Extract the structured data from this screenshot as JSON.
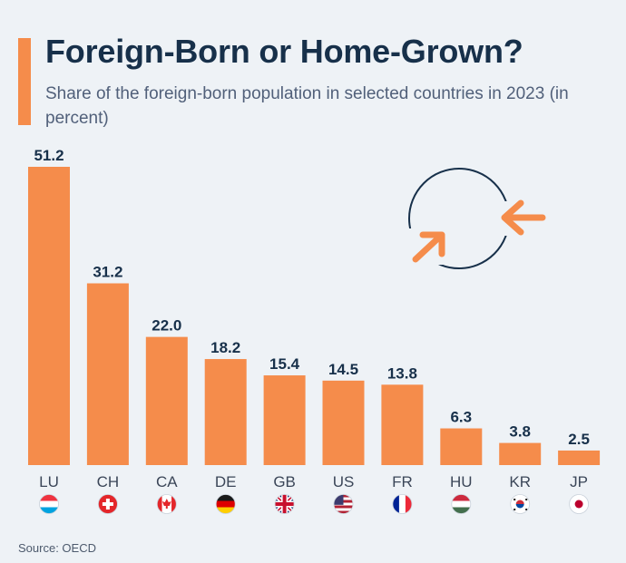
{
  "header": {
    "title": "Foreign-Born or Home-Grown?",
    "subtitle": "Share of the foreign-born population in selected countries in 2023 (in percent)"
  },
  "footer": {
    "source": "Source: OECD"
  },
  "colors": {
    "bar": "#f58c4b",
    "accent": "#f58c4b",
    "title": "#17304a",
    "label": "#17304a",
    "background": "#eef2f6"
  },
  "chart_data": {
    "type": "bar",
    "title": "Foreign-Born or Home-Grown?",
    "subtitle": "Share of the foreign-born population in selected countries in 2023 (in percent)",
    "categories": [
      "LU",
      "CH",
      "CA",
      "DE",
      "GB",
      "US",
      "FR",
      "HU",
      "KR",
      "JP"
    ],
    "values": [
      51.2,
      31.2,
      22.0,
      18.2,
      15.4,
      14.5,
      13.8,
      6.3,
      3.8,
      2.5
    ],
    "value_labels": [
      "51.2",
      "31.2",
      "22.0",
      "18.2",
      "15.4",
      "14.5",
      "13.8",
      "6.3",
      "3.8",
      "2.5"
    ],
    "flags": [
      "luxembourg-flag-icon",
      "switzerland-flag-icon",
      "canada-flag-icon",
      "germany-flag-icon",
      "uk-flag-icon",
      "usa-flag-icon",
      "france-flag-icon",
      "hungary-flag-icon",
      "south-korea-flag-icon",
      "japan-flag-icon"
    ],
    "decoration": "circular-arrows-icon",
    "ylim": [
      0,
      51.2
    ],
    "grid": false,
    "legend": "none"
  }
}
